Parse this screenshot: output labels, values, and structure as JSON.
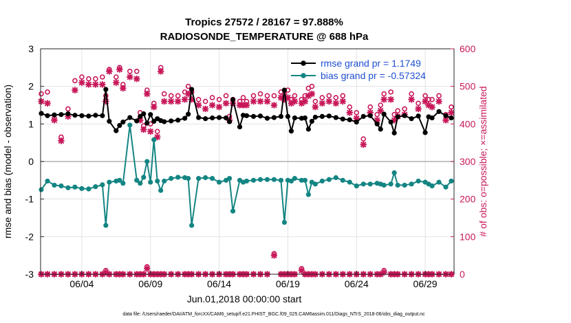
{
  "chart_data": {
    "type": "line",
    "title": "Tropics 27572 / 28167 = 97.888%",
    "subtitle": "RADIOSONDE_TEMPERATURE @ 688 hPa",
    "xlabel": "Jun.01,2018 00:00:00 start",
    "ylabel": "rmse and bias (model - observation)",
    "y2label": "# of obs: o=possible; ×=assimilated",
    "xlim": [
      1,
      31.1
    ],
    "ylim": [
      -3,
      3
    ],
    "y2lim": [
      0,
      600
    ],
    "x_ticks": [
      4,
      9,
      14,
      19,
      24,
      29
    ],
    "x_tick_labels": [
      "06/04",
      "06/09",
      "06/14",
      "06/19",
      "06/24",
      "06/29"
    ],
    "y_ticks": [
      -3,
      -2,
      -1,
      0,
      1,
      2,
      3
    ],
    "y_tick_labels": [
      "-3",
      "-2",
      "-1",
      "0",
      "1",
      "2",
      "3"
    ],
    "y2_ticks": [
      0,
      100,
      200,
      300,
      400,
      500,
      600
    ],
    "y2_tick_labels": [
      "0",
      "100",
      "200",
      "300",
      "400",
      "500",
      "600"
    ],
    "grid": true,
    "legend": "top-right",
    "legend_entries": [
      "rmse grand pr = 1.1749",
      "bias grand pr = -0.57324"
    ],
    "x": [
      1.05,
      1.5,
      2.0,
      2.5,
      3.0,
      3.5,
      4.0,
      4.5,
      5.0,
      5.5,
      5.75,
      6.0,
      6.5,
      6.75,
      7.0,
      7.5,
      8.0,
      8.25,
      8.5,
      8.75,
      9.0,
      9.25,
      9.5,
      9.75,
      10.0,
      10.5,
      11.0,
      11.5,
      11.75,
      12.0,
      12.5,
      13.0,
      13.5,
      14.0,
      14.5,
      14.75,
      15.0,
      15.5,
      15.75,
      16.0,
      16.5,
      17.0,
      17.5,
      18.0,
      18.5,
      18.75,
      19.0,
      19.25,
      19.5,
      20.0,
      20.25,
      20.5,
      20.75,
      21.0,
      21.5,
      22.0,
      22.5,
      23.0,
      23.5,
      24.0,
      24.5,
      25.0,
      25.5,
      25.75,
      26.0,
      26.5,
      26.75,
      27.0,
      27.5,
      28.0,
      28.5,
      29.0,
      29.25,
      29.5,
      30.0,
      30.5,
      30.9
    ],
    "series": [
      {
        "name": "rmse grand pr = 1.1749",
        "color": "#000000",
        "axis": "left",
        "values": [
          1.28,
          1.22,
          1.24,
          1.25,
          1.27,
          1.23,
          1.22,
          1.21,
          1.23,
          1.22,
          1.92,
          1.07,
          0.82,
          0.96,
          1.05,
          1.17,
          1.08,
          1.2,
          1.27,
          1.02,
          1.25,
          1.07,
          1.14,
          1.09,
          1.06,
          1.08,
          1.1,
          1.15,
          1.26,
          1.92,
          1.17,
          1.14,
          1.16,
          1.17,
          1.16,
          1.06,
          1.65,
          0.92,
          1.23,
          1.22,
          1.2,
          1.21,
          1.15,
          1.17,
          1.2,
          1.9,
          1.2,
          0.81,
          1.16,
          1.15,
          1.16,
          0.86,
          1.07,
          1.18,
          1.2,
          1.21,
          1.17,
          1.13,
          1.11,
          1.05,
          1.2,
          1.22,
          1.0,
          0.86,
          1.26,
          1.05,
          0.76,
          1.19,
          1.22,
          1.14,
          1.21,
          0.77,
          1.19,
          1.16,
          1.33,
          1.22,
          1.16
        ]
      },
      {
        "name": "bias grand pr = -0.57324",
        "color": "#138583",
        "axis": "left",
        "values": [
          -0.75,
          -0.52,
          -0.63,
          -0.65,
          -0.7,
          -0.68,
          -0.72,
          -0.73,
          -0.67,
          -0.62,
          -1.7,
          -0.55,
          -0.52,
          -0.5,
          -0.58,
          0.97,
          -0.5,
          -0.58,
          -0.42,
          0.0,
          -0.55,
          0.58,
          -0.52,
          -0.77,
          -0.52,
          -0.45,
          -0.42,
          -0.43,
          -0.45,
          -1.7,
          -0.45,
          -0.43,
          -0.45,
          -0.55,
          -0.5,
          -0.45,
          -1.32,
          -0.5,
          -0.55,
          -0.52,
          -0.5,
          -0.48,
          -0.48,
          -0.48,
          -0.5,
          -1.62,
          -0.5,
          -0.52,
          -0.45,
          -0.5,
          -0.5,
          -0.88,
          -0.55,
          -0.6,
          -0.52,
          -0.48,
          -0.43,
          -0.5,
          -0.55,
          -0.65,
          -0.6,
          -0.6,
          -0.58,
          -0.6,
          -0.63,
          -0.6,
          -0.3,
          -0.63,
          -0.63,
          -0.6,
          -0.52,
          -0.55,
          -0.6,
          -0.65,
          -0.55,
          -0.68,
          -0.52
        ]
      },
      {
        "name": "possible",
        "color": "#c8185a",
        "axis": "right",
        "values": [
          480,
          485,
          415,
          365,
          440,
          515,
          525,
          520,
          520,
          525,
          475,
          545,
          525,
          550,
          505,
          540,
          540,
          430,
          395,
          490,
          400,
          455,
          380,
          550,
          480,
          475,
          475,
          485,
          500,
          485,
          465,
          460,
          470,
          465,
          475,
          420,
          465,
          460,
          470,
          460,
          475,
          480,
          475,
          475,
          485,
          480,
          490,
          465,
          475,
          465,
          475,
          495,
          500,
          460,
          470,
          475,
          470,
          475,
          445,
          430,
          360,
          445,
          425,
          450,
          480,
          485,
          425,
          435,
          440,
          480,
          455,
          475,
          465,
          465,
          475,
          425,
          445
        ]
      },
      {
        "name": "assimilated",
        "color": "#c8185a",
        "axis": "right",
        "values": [
          460,
          455,
          410,
          355,
          420,
          490,
          510,
          505,
          505,
          505,
          460,
          540,
          510,
          545,
          495,
          525,
          520,
          410,
          385,
          480,
          380,
          445,
          365,
          540,
          460,
          460,
          460,
          465,
          480,
          465,
          450,
          440,
          450,
          445,
          455,
          410,
          455,
          450,
          450,
          450,
          460,
          460,
          460,
          450,
          470,
          465,
          470,
          455,
          460,
          455,
          460,
          475,
          480,
          445,
          455,
          460,
          455,
          460,
          430,
          415,
          345,
          430,
          410,
          435,
          465,
          465,
          410,
          420,
          425,
          465,
          440,
          460,
          450,
          445,
          460,
          410,
          430
        ]
      },
      {
        "name": "possible (bottom)",
        "color": "#c8185a",
        "axis": "right",
        "values": [
          0,
          0,
          0,
          0,
          0,
          0,
          0,
          0,
          0,
          0,
          10,
          0,
          0,
          0,
          0,
          0,
          0,
          0,
          0,
          20,
          0,
          0,
          0,
          0,
          0,
          0,
          0,
          0,
          0,
          0,
          0,
          0,
          0,
          0,
          0,
          0,
          0,
          0,
          0,
          0,
          0,
          0,
          0,
          55,
          0,
          0,
          0,
          0,
          0,
          15,
          0,
          0,
          0,
          0,
          0,
          0,
          0,
          0,
          0,
          0,
          0,
          0,
          0,
          0,
          10,
          0,
          0,
          0,
          0,
          0,
          0,
          0,
          0,
          0,
          0,
          0,
          0
        ]
      },
      {
        "name": "assimilated (bottom)",
        "color": "#c8185a",
        "axis": "right",
        "values": [
          0,
          0,
          0,
          0,
          0,
          0,
          0,
          0,
          0,
          0,
          5,
          0,
          0,
          0,
          0,
          0,
          0,
          0,
          0,
          15,
          0,
          0,
          0,
          0,
          0,
          0,
          0,
          0,
          0,
          0,
          0,
          0,
          0,
          0,
          0,
          0,
          0,
          0,
          0,
          0,
          0,
          0,
          0,
          50,
          0,
          0,
          0,
          0,
          0,
          10,
          0,
          0,
          0,
          0,
          0,
          0,
          0,
          0,
          0,
          0,
          0,
          0,
          0,
          0,
          5,
          0,
          0,
          0,
          0,
          0,
          0,
          0,
          0,
          0,
          0,
          0,
          0
        ]
      }
    ]
  },
  "footnote": "data file: /Users/raeder/DAI/ATM_forcXX/CAM6_setup/f.e21.FHIST_BGC.f09_025.CAM6assim.011/Diags_NTrS_2018-06/obs_diag_output.nc"
}
